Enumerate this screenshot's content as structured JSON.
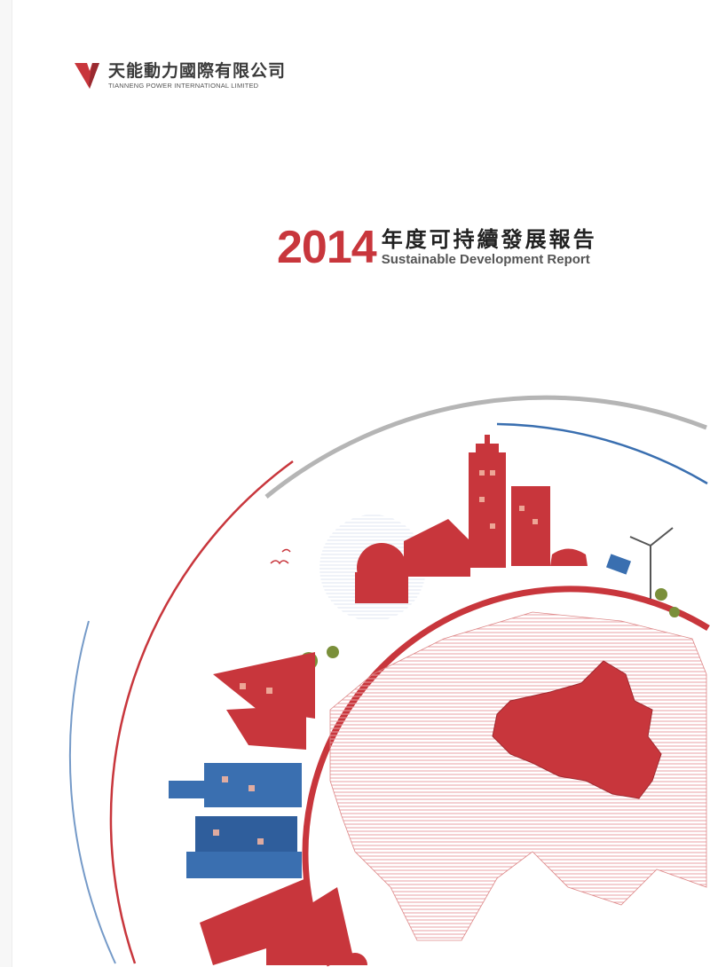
{
  "logo": {
    "name_cn": "天能動力國際有限公司",
    "name_en": "TIANNENG POWER INTERNATIONAL LIMITED"
  },
  "title": {
    "year": "2014",
    "cn": "年度可持續發展報告",
    "en": "Sustainable Development Report"
  },
  "colors": {
    "accent_red": "#c8363c",
    "accent_blue": "#3a6fb0",
    "arc_grey": "#b5b5b5"
  }
}
